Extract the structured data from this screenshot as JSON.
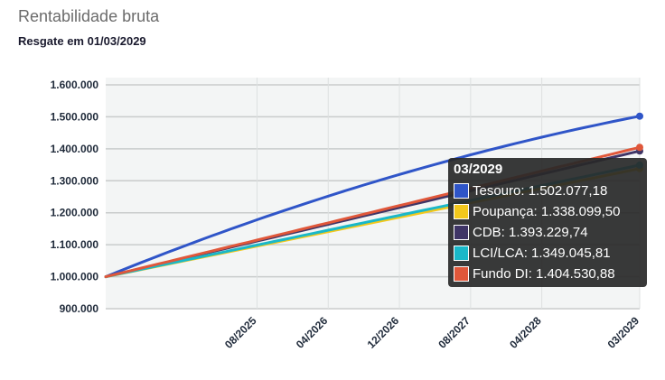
{
  "header": {
    "title": "Rentabilidade bruta",
    "subtitle": "Resgate em 01/03/2029"
  },
  "chart_data": {
    "type": "line",
    "title": "Rentabilidade bruta",
    "subtitle": "Resgate em 01/03/2029",
    "xlabel": "",
    "ylabel": "",
    "ylim": [
      900000,
      1600000
    ],
    "y_ticks": [
      "900.000",
      "1.000.000",
      "1.100.000",
      "1.200.000",
      "1.300.000",
      "1.400.000",
      "1.500.000",
      "1.600.000"
    ],
    "y_tick_values": [
      900000,
      1000000,
      1100000,
      1200000,
      1300000,
      1400000,
      1500000,
      1600000
    ],
    "x_ticks": [
      "08/2025",
      "04/2026",
      "12/2026",
      "08/2027",
      "04/2028",
      "03/2029"
    ],
    "x_start": "03/2024",
    "x_end": "03/2029",
    "grid": true,
    "series": [
      {
        "name": "Tesouro",
        "color": "#2f55c8",
        "start": 1000000,
        "end": 1502077.18,
        "curve": "concave"
      },
      {
        "name": "Poupança",
        "color": "#f2c81c",
        "start": 1000000,
        "end": 1338099.5,
        "curve": "linear"
      },
      {
        "name": "CDB",
        "color": "#3f3566",
        "start": 1000000,
        "end": 1393229.74,
        "curve": "linear"
      },
      {
        "name": "LCI/LCA",
        "color": "#19b8c9",
        "start": 1000000,
        "end": 1349045.81,
        "curve": "linear"
      },
      {
        "name": "Fundo DI",
        "color": "#e0573a",
        "start": 1000000,
        "end": 1404530.88,
        "curve": "linear"
      }
    ]
  },
  "tooltip": {
    "title": "03/2029",
    "rows": [
      {
        "label": "Tesouro: 1.502.077,18",
        "color": "#2f55c8"
      },
      {
        "label": "Poupança: 1.338.099,50",
        "color": "#f2c81c"
      },
      {
        "label": "CDB: 1.393.229,74",
        "color": "#3f3566"
      },
      {
        "label": "LCI/LCA: 1.349.045,81",
        "color": "#19b8c9"
      },
      {
        "label": "Fundo DI: 1.404.530,88",
        "color": "#e0573a"
      }
    ]
  }
}
